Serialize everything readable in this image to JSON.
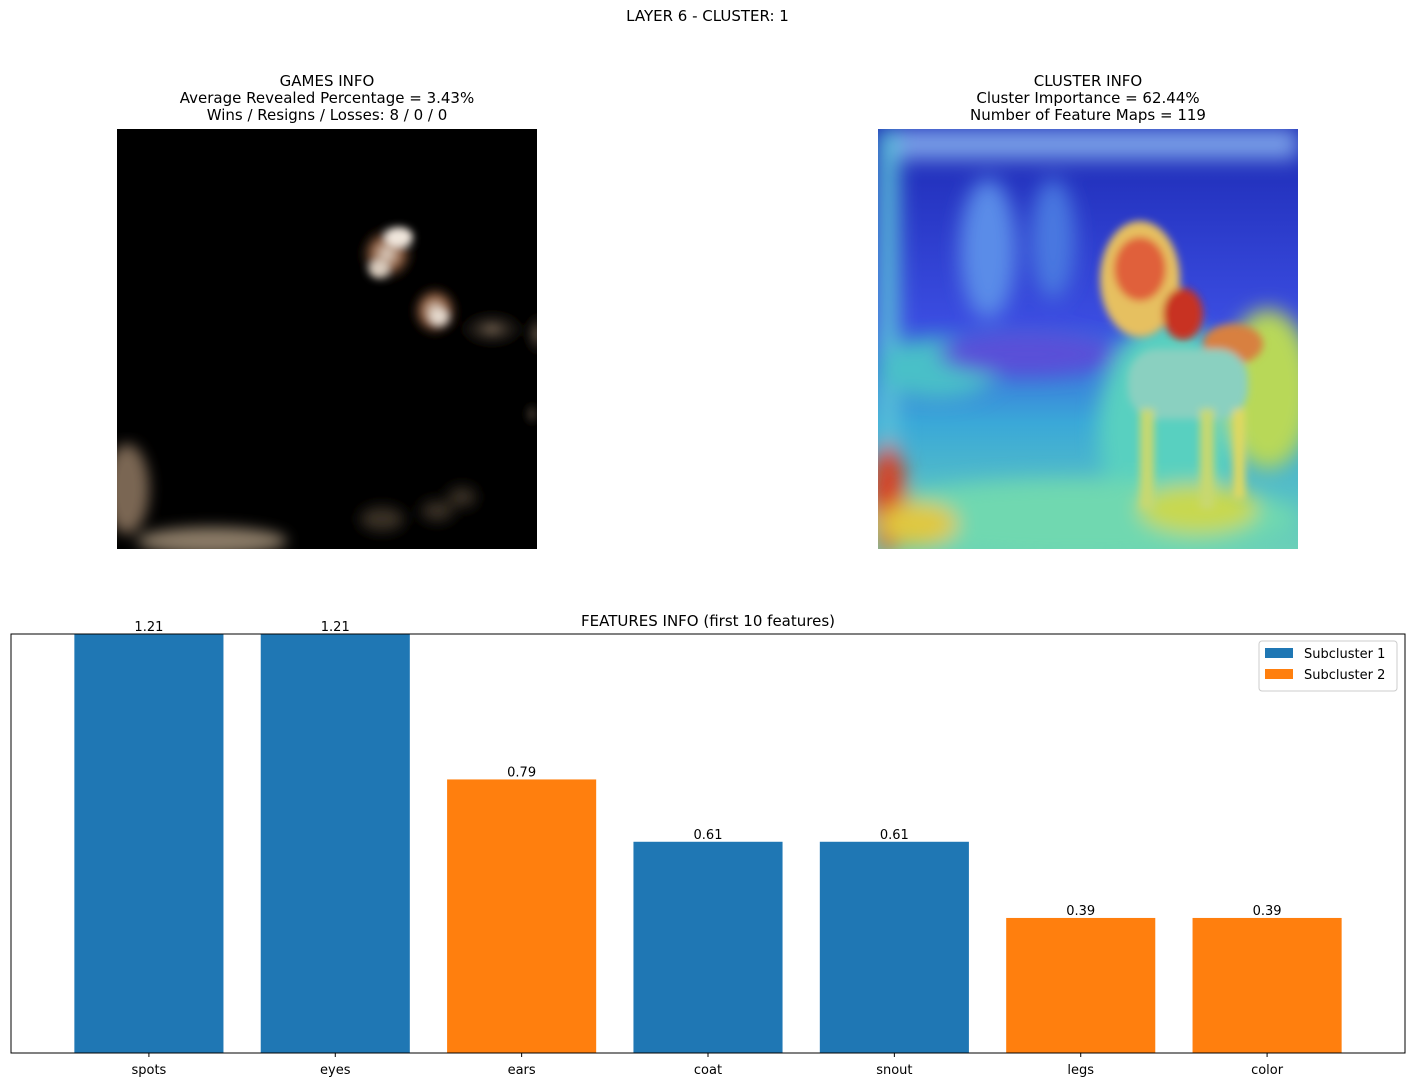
{
  "suptitle": "LAYER 6 - CLUSTER: 1",
  "games_info": {
    "title": "GAMES INFO",
    "line1": "Average Revealed Percentage = 3.43%",
    "line2": "Wins / Resigns / Losses: 8 / 0 / 0"
  },
  "cluster_info": {
    "title": "CLUSTER INFO",
    "line1": "Cluster Importance = 62.44%",
    "line2": "Number of Feature Maps = 119"
  },
  "colors": {
    "subcluster1": "#1f77b4",
    "subcluster2": "#ff7f0e"
  },
  "chart_data": {
    "type": "bar",
    "title": "FEATURES INFO (first 10 features)",
    "categories": [
      "spots",
      "eyes",
      "ears",
      "coat",
      "snout",
      "legs",
      "color"
    ],
    "values": [
      1.21,
      1.21,
      0.79,
      0.61,
      0.61,
      0.39,
      0.39
    ],
    "groups": [
      "Subcluster 1",
      "Subcluster 1",
      "Subcluster 2",
      "Subcluster 1",
      "Subcluster 1",
      "Subcluster 2",
      "Subcluster 2"
    ],
    "value_labels": [
      "1.21",
      "1.21",
      "0.79",
      "0.61",
      "0.61",
      "0.39",
      "0.39"
    ],
    "legend": [
      "Subcluster 1",
      "Subcluster 2"
    ],
    "legend_position": "top-right",
    "ylim": [
      0,
      1.21
    ],
    "xlabel": "",
    "ylabel": "",
    "grid": false
  }
}
